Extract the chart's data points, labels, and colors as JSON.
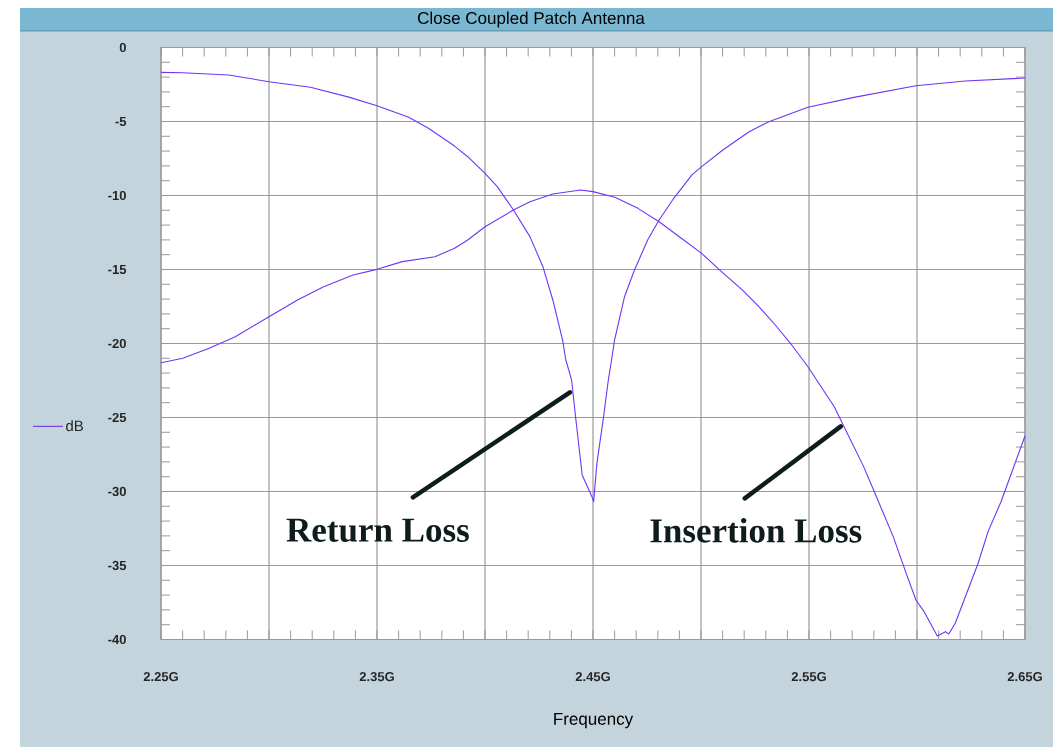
{
  "chart_data": {
    "type": "line",
    "title": "Close Coupled Patch Antenna",
    "xlabel": "Frequency",
    "xlim": [
      2.25,
      2.65
    ],
    "ylim": [
      -40,
      0
    ],
    "xticks": [
      {
        "value": 2.25,
        "label": "2.25G"
      },
      {
        "value": 2.3,
        "label": null
      },
      {
        "value": 2.35,
        "label": "2.35G"
      },
      {
        "value": 2.4,
        "label": null
      },
      {
        "value": 2.45,
        "label": "2.45G"
      },
      {
        "value": 2.5,
        "label": null
      },
      {
        "value": 2.55,
        "label": "2.55G"
      },
      {
        "value": 2.6,
        "label": null
      },
      {
        "value": 2.65,
        "label": "2.65G"
      }
    ],
    "yticks": [
      -40,
      -35,
      -30,
      -25,
      -20,
      -15,
      -10,
      -5,
      0
    ],
    "grid": true,
    "legend": "left",
    "marker": "none",
    "line_style": "solid",
    "series": [
      {
        "name": "dB",
        "color": "#6f35f5",
        "x": [
          2.25,
          2.26,
          2.2814,
          2.3,
          2.3192,
          2.3374,
          2.35,
          2.3647,
          2.3738,
          2.3859,
          2.392,
          2.4,
          2.4057,
          2.4132,
          2.4208,
          2.4268,
          2.4314,
          2.4359,
          2.4374,
          2.4401,
          2.442,
          2.445,
          2.4495,
          2.4503,
          2.4518,
          2.4549,
          2.4571,
          2.4586,
          2.46,
          2.4646,
          2.4692,
          2.4753,
          2.4806,
          2.4874,
          2.4958,
          2.5003,
          2.5101,
          2.5223,
          2.5314,
          2.5495,
          2.5708,
          2.5995,
          2.6223,
          2.65
        ],
        "values": [
          -1.68,
          -1.71,
          -1.86,
          -2.31,
          -2.69,
          -3.37,
          -3.93,
          -4.72,
          -5.46,
          -6.66,
          -7.38,
          -8.5,
          -9.4,
          -10.98,
          -12.78,
          -14.81,
          -17.06,
          -19.76,
          -21.1,
          -22.47,
          -25.05,
          -28.89,
          -30.35,
          -30.69,
          -28.1,
          -24.94,
          -22.47,
          -21.1,
          -19.76,
          -16.84,
          -15.03,
          -13.01,
          -11.66,
          -10.19,
          -8.61,
          -8.05,
          -6.93,
          -5.69,
          -5.01,
          -4.04,
          -3.37,
          -2.58,
          -2.26,
          -2.06
        ]
      },
      {
        "color": "#6f35f5",
        "x": [
          2.25,
          2.2601,
          2.2723,
          2.2844,
          2.3,
          2.3132,
          2.3253,
          2.3389,
          2.35,
          2.3617,
          2.3768,
          2.3859,
          2.392,
          2.4,
          2.4132,
          2.4208,
          2.4314,
          2.4442,
          2.45,
          2.4601,
          2.4708,
          2.4806,
          2.492,
          2.5003,
          2.5086,
          2.5192,
          2.5268,
          2.5344,
          2.542,
          2.5495,
          2.5617,
          2.5647,
          2.5753,
          2.5799,
          2.589,
          2.595,
          2.5995,
          2.6033,
          2.6094,
          2.6132,
          2.6147,
          2.6177,
          2.6283,
          2.6329,
          2.6389,
          2.65
        ],
        "values": [
          -21.3,
          -21.0,
          -20.32,
          -19.54,
          -18.19,
          -17.06,
          -16.16,
          -15.37,
          -14.99,
          -14.47,
          -14.14,
          -13.57,
          -13.01,
          -12.11,
          -10.98,
          -10.42,
          -9.9,
          -9.63,
          -9.74,
          -10.12,
          -10.87,
          -11.77,
          -13.01,
          -13.91,
          -15.03,
          -16.39,
          -17.51,
          -18.75,
          -20.1,
          -21.57,
          -24.27,
          -25.17,
          -28.32,
          -29.9,
          -33.05,
          -35.53,
          -37.33,
          -38.12,
          -39.76,
          -39.47,
          -39.63,
          -38.9,
          -34.85,
          -32.71,
          -30.69,
          -26.25
        ]
      }
    ],
    "annotations": [
      {
        "text": "Return Loss",
        "x": 2.4407,
        "y": -23.3
      },
      {
        "text": "Insertion Loss",
        "x": 2.5661,
        "y": -25.6
      }
    ]
  }
}
